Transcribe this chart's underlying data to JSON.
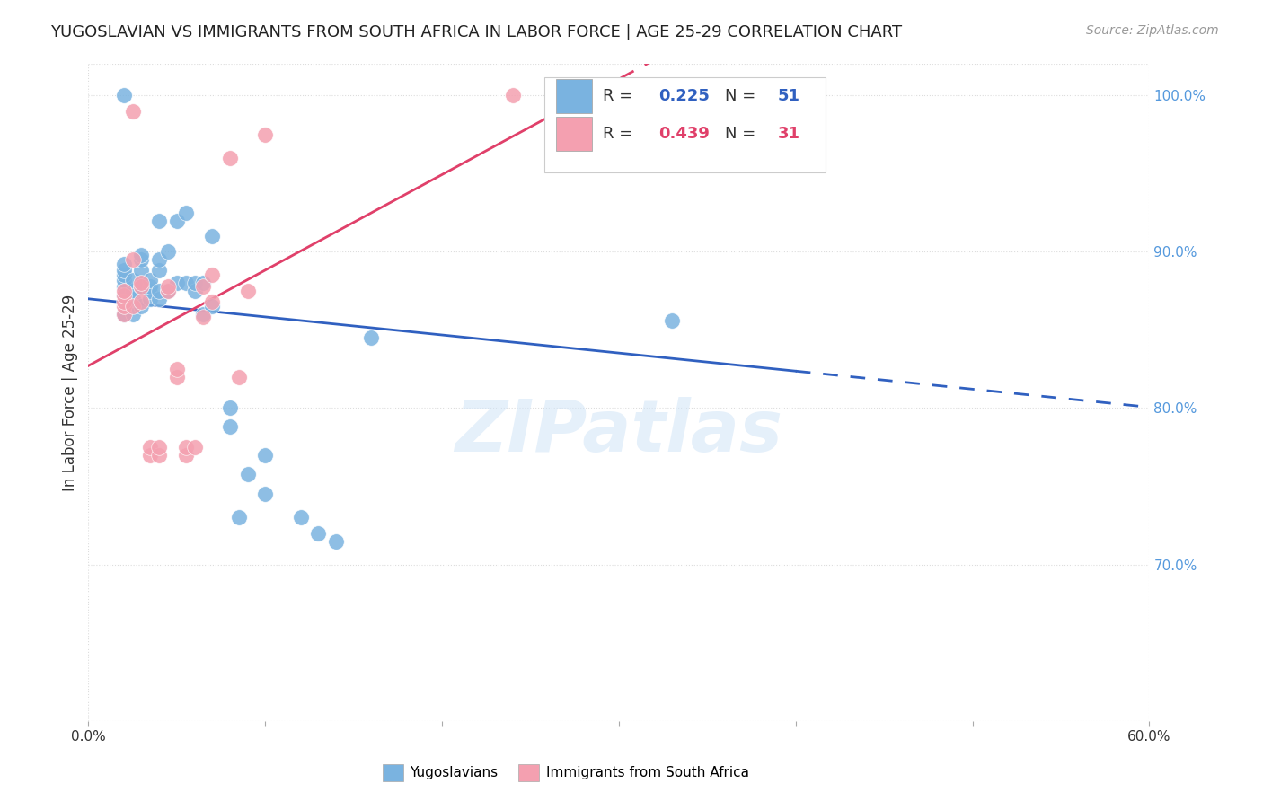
{
  "title": "YUGOSLAVIAN VS IMMIGRANTS FROM SOUTH AFRICA IN LABOR FORCE | AGE 25-29 CORRELATION CHART",
  "source": "Source: ZipAtlas.com",
  "ylabel": "In Labor Force | Age 25-29",
  "xlim": [
    0.0,
    0.6
  ],
  "ylim": [
    0.6,
    1.02
  ],
  "yticks": [
    0.7,
    0.8,
    0.9,
    1.0
  ],
  "ytick_labels": [
    "70.0%",
    "80.0%",
    "90.0%",
    "100.0%"
  ],
  "yug_color": "#7ab3e0",
  "sa_color": "#f4a0b0",
  "yug_line_color": "#3060c0",
  "sa_line_color": "#e0406a",
  "yug_R": 0.225,
  "yug_N": 51,
  "sa_R": 0.439,
  "sa_N": 31,
  "background_color": "#ffffff",
  "grid_color": "#dddddd",
  "right_tick_color": "#5599dd",
  "watermark": "ZIPatlas",
  "yug_x": [
    0.02,
    0.02,
    0.02,
    0.02,
    0.02,
    0.02,
    0.02,
    0.02,
    0.02,
    0.025,
    0.025,
    0.025,
    0.025,
    0.03,
    0.03,
    0.03,
    0.03,
    0.03,
    0.035,
    0.035,
    0.035,
    0.035,
    0.04,
    0.04,
    0.04,
    0.04,
    0.04,
    0.045,
    0.045,
    0.05,
    0.05,
    0.055,
    0.055,
    0.06,
    0.06,
    0.065,
    0.065,
    0.07,
    0.07,
    0.08,
    0.08,
    0.085,
    0.09,
    0.1,
    0.1,
    0.12,
    0.13,
    0.14,
    0.16,
    0.33,
    0.38
  ],
  "yug_y": [
    0.86,
    0.86,
    0.872,
    0.878,
    0.882,
    0.885,
    0.888,
    0.892,
    1.0,
    0.86,
    0.87,
    0.875,
    0.882,
    0.865,
    0.878,
    0.888,
    0.895,
    0.898,
    0.87,
    0.875,
    0.878,
    0.882,
    0.87,
    0.875,
    0.888,
    0.895,
    0.92,
    0.875,
    0.9,
    0.88,
    0.92,
    0.88,
    0.925,
    0.875,
    0.88,
    0.86,
    0.88,
    0.865,
    0.91,
    0.788,
    0.8,
    0.73,
    0.758,
    0.77,
    0.745,
    0.73,
    0.72,
    0.715,
    0.845,
    0.856,
    1.0
  ],
  "sa_x": [
    0.02,
    0.02,
    0.02,
    0.02,
    0.02,
    0.025,
    0.025,
    0.025,
    0.03,
    0.03,
    0.03,
    0.035,
    0.035,
    0.04,
    0.04,
    0.045,
    0.045,
    0.05,
    0.05,
    0.055,
    0.055,
    0.06,
    0.065,
    0.065,
    0.07,
    0.07,
    0.08,
    0.085,
    0.09,
    0.1,
    0.24
  ],
  "sa_y": [
    0.86,
    0.865,
    0.868,
    0.872,
    0.875,
    0.865,
    0.895,
    0.99,
    0.868,
    0.878,
    0.88,
    0.77,
    0.775,
    0.77,
    0.775,
    0.875,
    0.878,
    0.82,
    0.825,
    0.77,
    0.775,
    0.775,
    0.858,
    0.878,
    0.868,
    0.885,
    0.96,
    0.82,
    0.875,
    0.975,
    1.0
  ]
}
